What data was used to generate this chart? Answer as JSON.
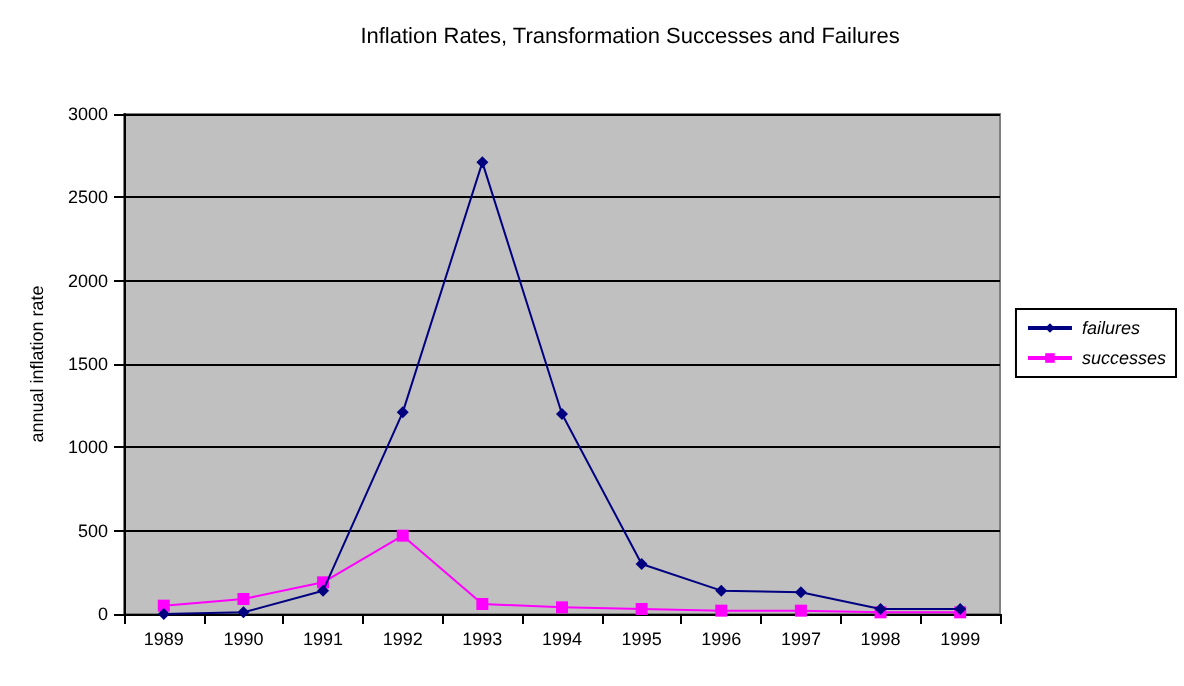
{
  "chart_data": {
    "type": "line",
    "title": "Inflation Rates, Transformation Successes and Failures",
    "ylabel": "annual inflation rate",
    "categories": [
      "1989",
      "1990",
      "1991",
      "1992",
      "1993",
      "1994",
      "1995",
      "1996",
      "1997",
      "1998",
      "1999"
    ],
    "series": [
      {
        "name": "failures",
        "color": "#000080",
        "marker": "diamond",
        "values": [
          0,
          10,
          140,
          1210,
          2710,
          1200,
          300,
          140,
          130,
          30,
          30
        ]
      },
      {
        "name": "successes",
        "color": "#ff00ff",
        "marker": "square",
        "values": [
          50,
          90,
          190,
          470,
          60,
          40,
          30,
          20,
          20,
          10,
          10
        ]
      }
    ],
    "ylim": [
      0,
      3000
    ],
    "yticks": [
      0,
      500,
      1000,
      1500,
      2000,
      2500,
      3000
    ],
    "grid": "y",
    "legend": "right",
    "line_style": "solid"
  }
}
